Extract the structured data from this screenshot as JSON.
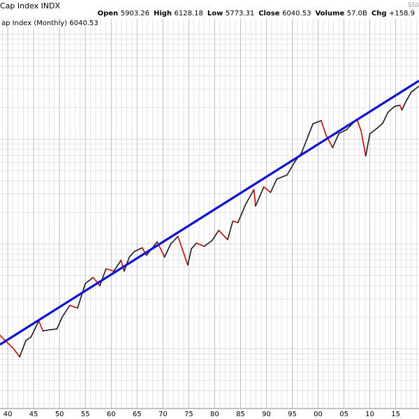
{
  "header": {
    "title": "Cap Index INDX",
    "logo_text": "Sto",
    "stats": [
      {
        "label": "Open",
        "value": "5903.26"
      },
      {
        "label": "High",
        "value": "6128.18"
      },
      {
        "label": "Low",
        "value": "5773.31"
      },
      {
        "label": "Close",
        "value": "6040.53"
      },
      {
        "label": "Volume",
        "value": "57.0B"
      },
      {
        "label": "Chg",
        "value": "+158.9"
      }
    ]
  },
  "series_label": "ap Index (Monthly) 6040.53",
  "colors": {
    "grid": "#d4d4de",
    "line_up": "#1a1a1a",
    "line_down": "#cc0000",
    "trend": "#1010d0",
    "axis_text": "#000000"
  },
  "chart_data": {
    "type": "line",
    "title": "",
    "xlabel": "",
    "ylabel": "",
    "x_tick_labels": [
      "40",
      "45",
      "50",
      "55",
      "60",
      "65",
      "70",
      "75",
      "80",
      "85",
      "90",
      "95",
      "00",
      "05",
      "10",
      "15"
    ],
    "x_tick_years": [
      1940,
      1945,
      1950,
      1955,
      1960,
      1965,
      1970,
      1975,
      1980,
      1985,
      1990,
      1995,
      2000,
      2005,
      2010,
      2015
    ],
    "xlim": [
      1938.5,
      2019.5
    ],
    "y_scale": "log",
    "ylim": [
      2.7,
      14000
    ],
    "grid": true,
    "series": [
      {
        "x": [
          1938.5,
          1939.5,
          1941.0,
          1942.3,
          1943.5,
          1944.5,
          1946.0,
          1946.8,
          1948.0,
          1949.5,
          1950.5,
          1952.0,
          1953.5,
          1955.0,
          1956.5,
          1957.8,
          1959.0,
          1960.5,
          1961.9,
          1962.5,
          1963.5,
          1964.5,
          1966.0,
          1966.8,
          1968.9,
          1970.3,
          1971.5,
          1972.9,
          1974.8,
          1975.5,
          1976.5,
          1978.0,
          1979.5,
          1980.8,
          1982.5,
          1983.5,
          1984.5,
          1986.0,
          1987.6,
          1987.9,
          1989.5,
          1990.8,
          1992.0,
          1994.0,
          1995.5,
          1996.8,
          1998.0,
          1999.0,
          2000.6,
          2001.5,
          2002.8,
          2004.0,
          2005.5,
          2007.5,
          2008.3,
          2009.2,
          2010.0,
          2011.5,
          2012.5,
          2013.5,
          2014.8,
          2015.8,
          2016.2,
          2017.0,
          2018.0,
          2019.5
        ],
        "y": [
          13.5,
          12.0,
          10.2,
          8.4,
          12.0,
          13.0,
          18.5,
          14.8,
          15.2,
          15.5,
          20.0,
          26.0,
          24.5,
          42.0,
          48.0,
          40.0,
          58.0,
          55.0,
          70.0,
          55.0,
          75.0,
          85.0,
          92.0,
          78.0,
          105.0,
          75.0,
          100.0,
          118.0,
          63.0,
          90.0,
          102.0,
          95.0,
          108.0,
          135.0,
          110.0,
          165.0,
          160.0,
          240.0,
          330.0,
          230.0,
          350.0,
          310.0,
          415.0,
          455.0,
          610.0,
          740.0,
          1050.0,
          1400.0,
          1500.0,
          1100.0,
          830.0,
          1130.0,
          1230.0,
          1550.0,
          1200.0,
          690.0,
          1120.0,
          1280.0,
          1420.0,
          1800.0,
          2050.0,
          2100.0,
          1900.0,
          2300.0,
          2800.0,
          3200.0
        ]
      }
    ],
    "trendline": {
      "x": [
        1938.5,
        2019.5
      ],
      "y": [
        11.0,
        3600.0
      ]
    }
  }
}
